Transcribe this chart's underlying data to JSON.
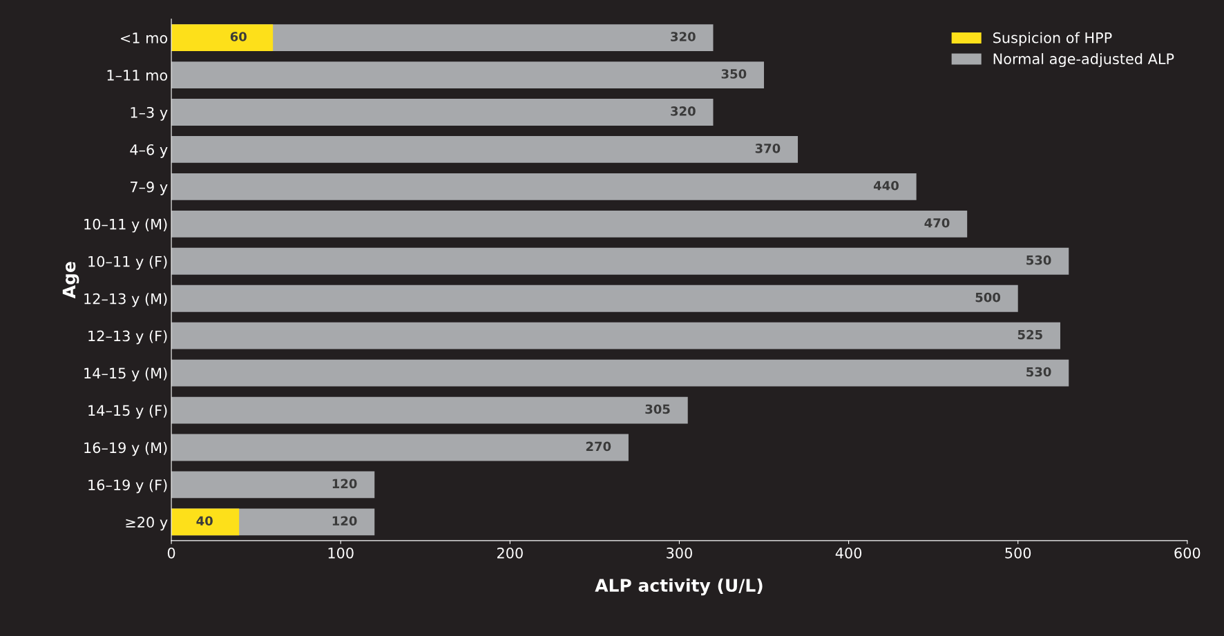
{
  "chart_data": {
    "type": "bar",
    "orientation": "horizontal",
    "xlabel": "ALP activity (U/L)",
    "ylabel": "Age",
    "categories": [
      "<1 mo",
      "1–11 mo",
      "1–3 y",
      "4–6 y",
      "7–9 y",
      "10–11 y (M)",
      "10–11 y (F)",
      "12–13 y (M)",
      "12–13 y (F)",
      "14–15 y (M)",
      "14–15 y (F)",
      "16–19 y (M)",
      "16–19 y (F)",
      "≥20 y"
    ],
    "series": [
      {
        "name": "Normal age-adjusted ALP",
        "color": "#a7a9ac",
        "values": [
          320,
          350,
          320,
          370,
          440,
          470,
          530,
          500,
          525,
          530,
          305,
          270,
          120,
          120
        ],
        "value_labels": [
          "320",
          "350",
          "320",
          "370",
          "440",
          "470",
          "530",
          "500",
          "525",
          "530",
          "305",
          "270",
          "120",
          "120"
        ]
      },
      {
        "name": "Suspicion of HPP",
        "color": "#fde01a",
        "values": [
          60,
          null,
          null,
          null,
          null,
          null,
          null,
          null,
          null,
          null,
          null,
          null,
          null,
          40
        ],
        "value_labels": [
          "60",
          null,
          null,
          null,
          null,
          null,
          null,
          null,
          null,
          null,
          null,
          null,
          null,
          "40"
        ]
      }
    ],
    "xlim": [
      0,
      600
    ],
    "xticks": [
      0,
      100,
      200,
      300,
      400,
      500,
      600
    ],
    "grid": false,
    "legend": "top right"
  }
}
